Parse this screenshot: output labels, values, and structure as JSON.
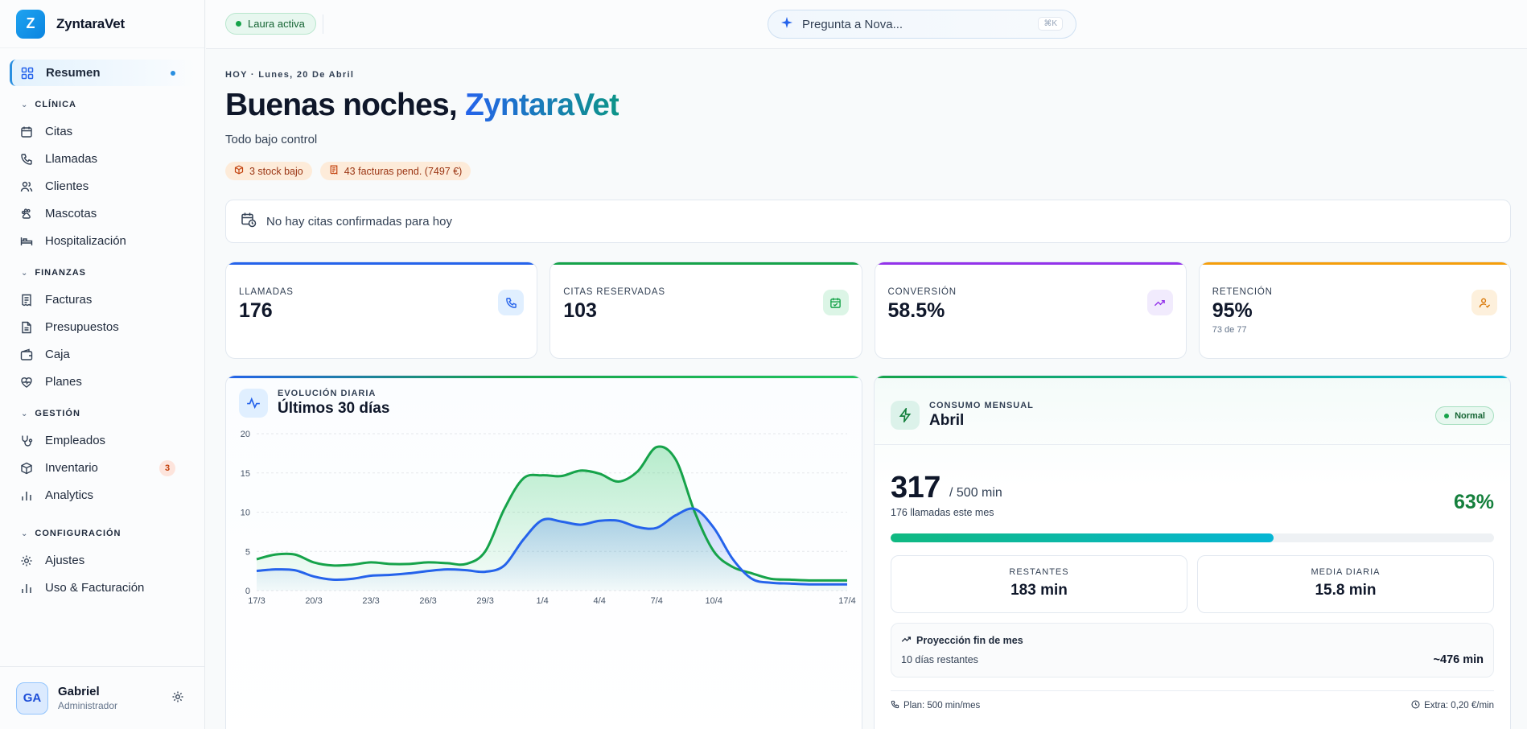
{
  "app": {
    "logo_letter": "Z",
    "name": "ZyntaraVet"
  },
  "sidebar": {
    "resumen": "Resumen",
    "sections": [
      {
        "title": "CLÍNICA",
        "items": [
          "Citas",
          "Llamadas",
          "Clientes",
          "Mascotas",
          "Hospitalización"
        ]
      },
      {
        "title": "FINANZAS",
        "items": [
          "Facturas",
          "Presupuestos",
          "Caja",
          "Planes"
        ]
      },
      {
        "title": "GESTIÓN",
        "items": [
          "Empleados",
          "Inventario",
          "Analytics"
        ],
        "badge": "3"
      },
      {
        "title": "CONFIGURACIÓN",
        "items": [
          "Ajustes",
          "Uso & Facturación"
        ]
      }
    ],
    "user": {
      "initials": "GA",
      "name": "Gabriel",
      "role": "Administrador"
    }
  },
  "topbar": {
    "status": "Laura activa",
    "ask_placeholder": "Pregunta a Nova...",
    "shortcut": "⌘K"
  },
  "header": {
    "date": "HOY · Lunes, 20 De Abril",
    "greeting": "Buenas noches, ",
    "greeting_name": "ZyntaraVet",
    "subtitle": "Todo bajo control",
    "alerts": [
      "3 stock bajo",
      "43 facturas pend. (7497 €)"
    ]
  },
  "no_appointments": "No hay citas confirmadas para hoy",
  "kpis": [
    {
      "label": "LLAMADAS",
      "value": "176",
      "sub": "",
      "accent": "#2563eb"
    },
    {
      "label": "CITAS RESERVADAS",
      "value": "103",
      "sub": "",
      "accent": "#16a34a"
    },
    {
      "label": "CONVERSIÓN",
      "value": "58.5%",
      "sub": "",
      "accent": "#9333ea"
    },
    {
      "label": "RETENCIÓN",
      "value": "95%",
      "sub": "73 de 77",
      "accent": "#f59e0b"
    }
  ],
  "chart_card": {
    "label": "EVOLUCIÓN DIARIA",
    "title": "Últimos 30 días"
  },
  "chart_data": {
    "type": "area",
    "x": [
      "17/3",
      "18/3",
      "19/3",
      "20/3",
      "21/3",
      "22/3",
      "23/3",
      "24/3",
      "25/3",
      "26/3",
      "27/3",
      "28/3",
      "29/3",
      "30/3",
      "31/3",
      "1/4",
      "2/4",
      "3/4",
      "4/4",
      "5/4",
      "6/4",
      "7/4",
      "8/4",
      "9/4",
      "10/4",
      "11/4",
      "12/4",
      "13/4",
      "14/4",
      "15/4",
      "16/4",
      "17/4"
    ],
    "xticks": [
      "17/3",
      "20/3",
      "23/3",
      "26/3",
      "29/3",
      "1/4",
      "4/4",
      "7/4",
      "10/4",
      "17/4"
    ],
    "series": [
      {
        "name": "",
        "color": "#16a34a",
        "values": [
          4.0,
          4.6,
          4.6,
          3.6,
          3.2,
          3.3,
          3.6,
          3.4,
          3.4,
          3.6,
          3.5,
          3.4,
          5.0,
          10.4,
          14.3,
          14.7,
          14.6,
          15.3,
          14.9,
          13.9,
          15.2,
          18.3,
          16.7,
          10.0,
          5.0,
          3.0,
          2.2,
          1.5,
          1.4,
          1.3,
          1.3,
          1.3
        ]
      },
      {
        "name": "",
        "color": "#2563eb",
        "values": [
          2.5,
          2.7,
          2.6,
          1.8,
          1.4,
          1.5,
          1.9,
          2.0,
          2.2,
          2.5,
          2.7,
          2.6,
          2.4,
          3.2,
          6.5,
          9.0,
          8.8,
          8.4,
          8.9,
          8.9,
          8.1,
          8.0,
          9.6,
          10.4,
          8.0,
          4.0,
          1.5,
          1.0,
          0.9,
          0.8,
          0.8,
          0.8
        ]
      }
    ],
    "ylim": [
      0,
      20
    ],
    "yticks": [
      0,
      5,
      10,
      15,
      20
    ],
    "grid": true
  },
  "consumo": {
    "label": "CONSUMO MENSUAL",
    "title": "Abril",
    "badge": "Normal",
    "used": "317",
    "limit": "/ 500 min",
    "calls": "176 llamadas este mes",
    "percent": "63%",
    "progress": 0.634,
    "remaining_label": "RESTANTES",
    "remaining_value": "183 min",
    "avg_label": "MEDIA DIARIA",
    "avg_value": "15.8 min",
    "projection_title": "Proyección fin de mes",
    "projection_days": "10 días restantes",
    "projection_value": "~476 min",
    "plan": "Plan: 500 min/mes",
    "extra": "Extra: 0,20 €/min"
  }
}
